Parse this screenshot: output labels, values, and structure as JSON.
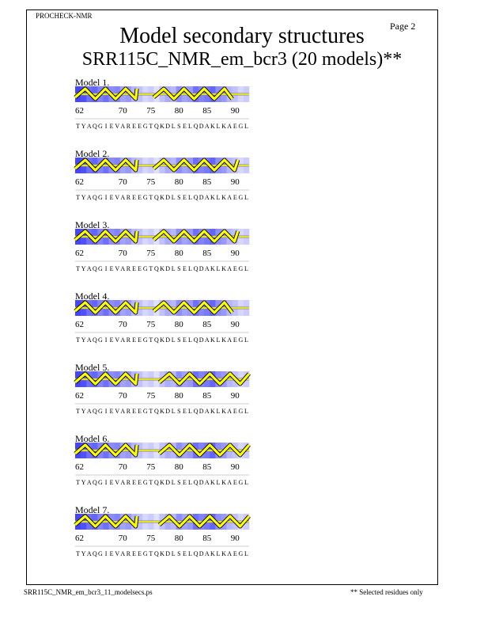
{
  "header": {
    "program": "PROCHECK-NMR",
    "page": "Page  2"
  },
  "title": "Model secondary structures",
  "subtitle": "SRR115C_NMR_em_bcr3 (20 models)**",
  "sequence": {
    "start": 62,
    "residues": "TYAQGIEVAREEGTQKDLSELQDAKLKAEGL",
    "tick_labels": [
      62,
      70,
      75,
      80,
      85,
      90
    ],
    "shading": [
      0.9,
      0.85,
      0.7,
      0.75,
      0.6,
      0.7,
      0.55,
      0.6,
      0.45,
      0.5,
      0.35,
      0.3,
      0.2,
      0.25,
      0.15,
      0.3,
      0.4,
      0.35,
      0.55,
      0.45,
      0.5,
      0.7,
      0.6,
      0.65,
      0.75,
      0.55,
      0.5,
      0.35,
      0.3,
      0.2,
      0.25
    ]
  },
  "colors": {
    "helix": "#ffff00",
    "shade": "#3030ff"
  },
  "models": [
    {
      "label": "Model  1.",
      "helices": [
        [
          62,
          72
        ],
        [
          76,
          89
        ]
      ]
    },
    {
      "label": "Model  2.",
      "helices": [
        [
          62,
          72
        ],
        [
          76,
          90
        ]
      ]
    },
    {
      "label": "Model  3.",
      "helices": [
        [
          62,
          72
        ],
        [
          76,
          90
        ]
      ]
    },
    {
      "label": "Model  4.",
      "helices": [
        [
          62,
          72
        ],
        [
          76,
          89
        ]
      ]
    },
    {
      "label": "Model  5.",
      "helices": [
        [
          62,
          72
        ],
        [
          77,
          92
        ]
      ]
    },
    {
      "label": "Model  6.",
      "helices": [
        [
          62,
          72
        ],
        [
          77,
          92
        ]
      ]
    },
    {
      "label": "Model  7.",
      "helices": [
        [
          62,
          72
        ],
        [
          77,
          92
        ]
      ]
    }
  ],
  "footer": {
    "filename": "SRR115C_NMR_em_bcr3_11_modelsecs.ps",
    "note": "** Selected residues only"
  }
}
